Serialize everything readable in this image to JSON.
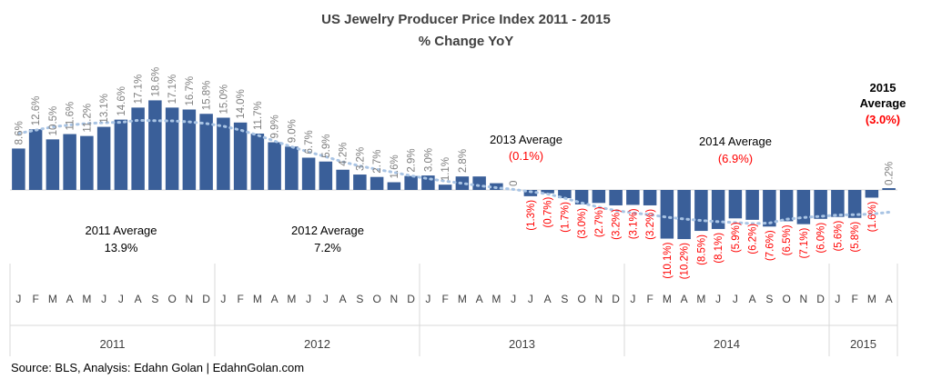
{
  "chart_data": {
    "type": "bar",
    "title": "US Jewelry Producer Price Index 2011 - 2015",
    "subtitle": "% Change YoY",
    "source": "Source: BLS, Analysis: Edahn Golan | EdahnGolan.com",
    "months": [
      "J",
      "F",
      "M",
      "A",
      "M",
      "J",
      "J",
      "A",
      "S",
      "O",
      "N",
      "D",
      "J",
      "F",
      "M",
      "A",
      "M",
      "J",
      "J",
      "A",
      "S",
      "O",
      "N",
      "D",
      "J",
      "F",
      "M",
      "A",
      "M",
      "J",
      "J",
      "A",
      "S",
      "O",
      "N",
      "D",
      "J",
      "F",
      "M",
      "A",
      "M",
      "J",
      "J",
      "A",
      "S",
      "O",
      "N",
      "D",
      "J",
      "F",
      "M",
      "A"
    ],
    "years": [
      {
        "label": "2011",
        "months": 12
      },
      {
        "label": "2012",
        "months": 12
      },
      {
        "label": "2013",
        "months": 12
      },
      {
        "label": "2014",
        "months": 12
      },
      {
        "label": "2015",
        "months": 4
      }
    ],
    "values": [
      8.6,
      12.6,
      10.5,
      11.6,
      11.2,
      13.1,
      14.6,
      17.1,
      18.6,
      17.1,
      16.7,
      15.8,
      15.0,
      14.0,
      11.7,
      9.9,
      9.0,
      6.7,
      5.9,
      4.2,
      3.2,
      2.7,
      1.6,
      2.9,
      3.0,
      1.1,
      2.8,
      2.8,
      1.4,
      0,
      -1.3,
      -0.7,
      -1.7,
      -3.0,
      -2.7,
      -3.2,
      -3.1,
      -3.2,
      -10.1,
      -10.2,
      -8.5,
      -8.1,
      -5.9,
      -6.2,
      -7.6,
      -6.5,
      -7.1,
      -6.0,
      -5.6,
      -5.8,
      -1.6,
      0.2
    ],
    "labels": [
      "8.6%",
      "12.6%",
      "10.5%",
      "11.6%",
      "11.2%",
      "13.1%",
      "14.6%",
      "17.1%",
      "18.6%",
      "17.1%",
      "16.7%",
      "15.8%",
      "15.0%",
      "14.0%",
      "11.7%",
      "9.9%",
      "9.0%",
      "6.7%",
      "5.9%",
      "4.2%",
      "3.2%",
      "2.7%",
      "1.6%",
      "2.9%",
      "3.0%",
      "1.1%",
      "2.8%",
      "",
      "",
      "0",
      "(1.3%)",
      "(0.7%)",
      "(1.7%)",
      "(3.0%)",
      "(2.7%)",
      "(3.2%)",
      "(3.1%)",
      "(3.2%)",
      "(10.1%)",
      "(10.2%)",
      "(8.5%)",
      "(8.1%)",
      "(5.9%)",
      "(6.2%)",
      "(7.6%)",
      "(6.5%)",
      "(7.1%)",
      "(6.0%)",
      "(5.6%)",
      "(5.8%)",
      "(1.6%)",
      "0.2%"
    ],
    "averages": [
      {
        "title": "2011 Average",
        "value": "13.9%"
      },
      {
        "title": "2012 Average",
        "value": "7.2%"
      },
      {
        "title": "2013 Average",
        "value": "(0.1%)"
      },
      {
        "title": "2014 Average",
        "value": "(6.9%)"
      },
      {
        "title": "2015 Average",
        "value": "(3.0%)"
      }
    ],
    "trendline": "dotted",
    "colors": {
      "bar": "#3a5f99",
      "trend": "#a9c4e4",
      "positive_label": "#7f7f7f",
      "negative_label": "#ff0000",
      "avg_negative": "#ff0000",
      "text": "#404040"
    }
  }
}
